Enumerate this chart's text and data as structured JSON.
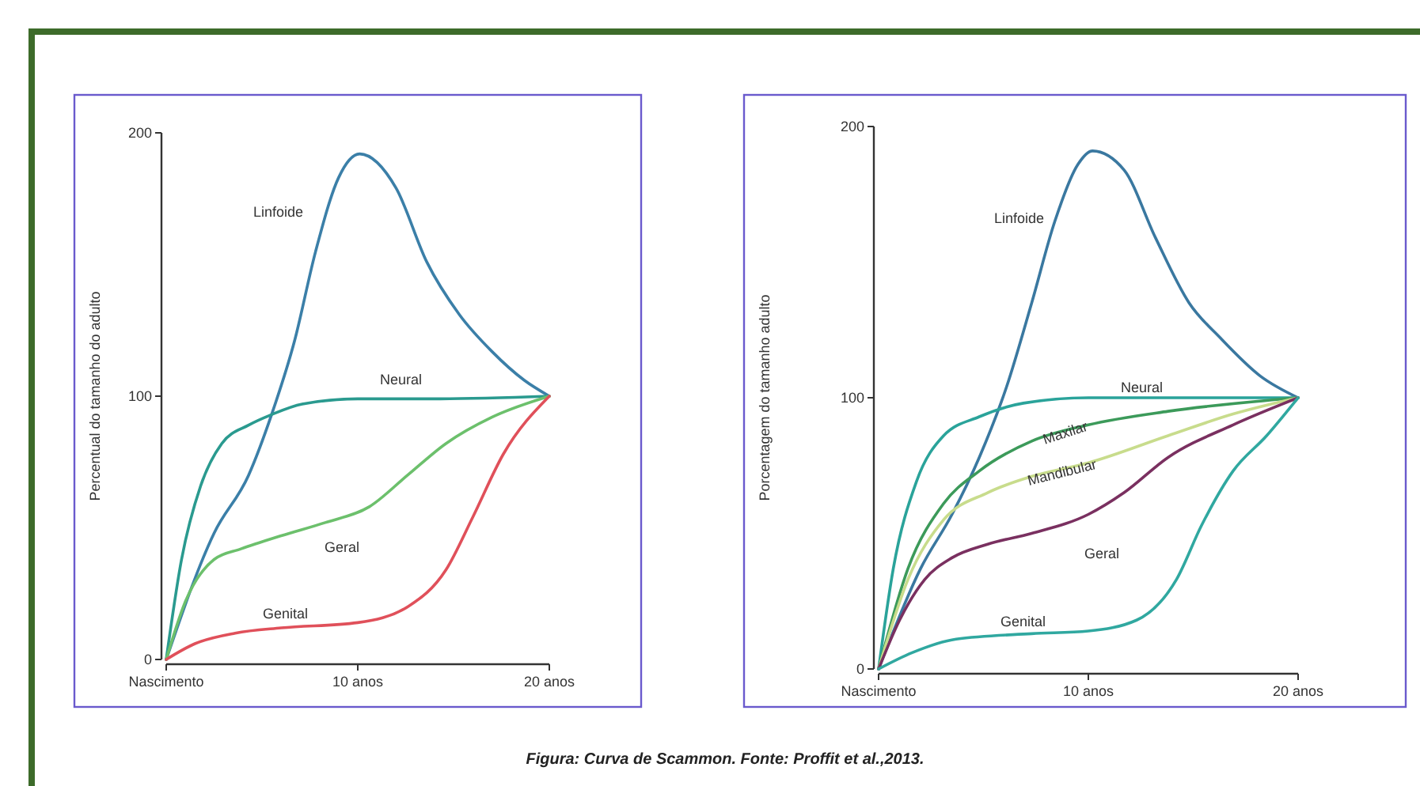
{
  "chart_data": [
    {
      "type": "line",
      "ylabel": "Percentual do tamanho do adulto",
      "xlim": [
        0,
        20
      ],
      "ylim": [
        0,
        200
      ],
      "xticks": [
        {
          "value": 0,
          "label": "Nascimento"
        },
        {
          "value": 10,
          "label": "10 anos"
        },
        {
          "value": 20,
          "label": "20 anos"
        }
      ],
      "yticks": [
        0,
        100,
        200
      ],
      "grid": false,
      "legend": false,
      "line_style": "solid",
      "series": [
        {
          "name": "Linfoide",
          "color": "#3b7fa8",
          "x": [
            0,
            2.5,
            4.3,
            5.5,
            6.7,
            7.8,
            9,
            10.1,
            12,
            13.6,
            15.3,
            17,
            18.7,
            20
          ],
          "values": [
            0,
            48,
            70,
            93,
            121,
            155,
            183,
            192,
            179,
            151,
            131,
            117,
            106,
            100
          ]
        },
        {
          "name": "Neural",
          "color": "#2a9a8f",
          "x": [
            0,
            0.8,
            1.8,
            2.9,
            4.3,
            5.5,
            7.1,
            10,
            14.3,
            20
          ],
          "values": [
            0,
            38,
            66,
            82,
            89,
            93,
            97,
            99,
            99,
            100
          ]
        },
        {
          "name": "Geral",
          "color": "#6cc06c",
          "x": [
            0,
            1,
            2.5,
            3.9,
            6,
            8.3,
            10.6,
            12.6,
            14.6,
            17,
            20
          ],
          "values": [
            0,
            22,
            38,
            42,
            47,
            52,
            58,
            70,
            82,
            92,
            100
          ]
        },
        {
          "name": "Genital",
          "color": "#e0505a",
          "x": [
            0,
            1.5,
            3.6,
            6,
            10,
            12.6,
            14.6,
            16,
            17.6,
            20
          ],
          "values": [
            0,
            6,
            10,
            12,
            14,
            20,
            34,
            54,
            78,
            100
          ]
        }
      ]
    },
    {
      "type": "line",
      "ylabel": "Porcentagem do tamanho adulto",
      "xlim": [
        0,
        20
      ],
      "ylim": [
        0,
        200
      ],
      "xticks": [
        {
          "value": 0,
          "label": "Nascimento"
        },
        {
          "value": 10,
          "label": "10 anos"
        },
        {
          "value": 20,
          "label": "20 anos"
        }
      ],
      "yticks": [
        0,
        100,
        200
      ],
      "grid": false,
      "legend": false,
      "line_style": "solid",
      "annotations": [
        "Figura: Curva de Scammon. Fonte: Proffit et al.,2013."
      ],
      "series": [
        {
          "name": "Linfoide",
          "color": "#3a78a0",
          "x": [
            0,
            2,
            3.5,
            4.8,
            6.1,
            7.3,
            8.4,
            9.5,
            10.2,
            11.7,
            13.2,
            14.8,
            16.3,
            18.2,
            20
          ],
          "values": [
            0,
            37,
            57,
            78,
            104,
            135,
            165,
            186,
            191,
            184,
            159,
            135,
            122,
            108,
            100
          ]
        },
        {
          "name": "Neural",
          "color": "#2aa39a",
          "x": [
            0,
            0.7,
            1.8,
            3.1,
            4.8,
            6.9,
            10,
            20
          ],
          "values": [
            0,
            37,
            69,
            86,
            93,
            98,
            100,
            100
          ]
        },
        {
          "name": "Maxilar",
          "color": "#3c9a5a",
          "x": [
            0,
            1.4,
            3.1,
            4.8,
            7.3,
            10,
            13.8,
            20
          ],
          "values": [
            0,
            37,
            61,
            73,
            84,
            90,
            95,
            100
          ]
        },
        {
          "name": "Mandibular",
          "color": "#c8dc8c",
          "x": [
            0,
            1.4,
            3.1,
            5.2,
            7.3,
            10,
            13.8,
            16.9,
            20
          ],
          "values": [
            0,
            33,
            55,
            65,
            71,
            76,
            86,
            94,
            100
          ]
        },
        {
          "name": "Geral",
          "color": "#7a3060",
          "x": [
            0,
            1,
            2.2,
            3.5,
            5.2,
            7.3,
            10,
            11.7,
            13.8,
            16.9,
            20
          ],
          "values": [
            0,
            18,
            33,
            41,
            46,
            50,
            57,
            65,
            78,
            90,
            100
          ]
        },
        {
          "name": "Genital",
          "color": "#30a8a0",
          "x": [
            0,
            1.6,
            3.7,
            7.3,
            10,
            12.3,
            14.2,
            15.4,
            16.9,
            18.5,
            20
          ],
          "values": [
            0,
            6,
            11,
            13,
            14,
            18,
            33,
            53,
            73,
            86,
            100
          ]
        }
      ]
    }
  ]
}
